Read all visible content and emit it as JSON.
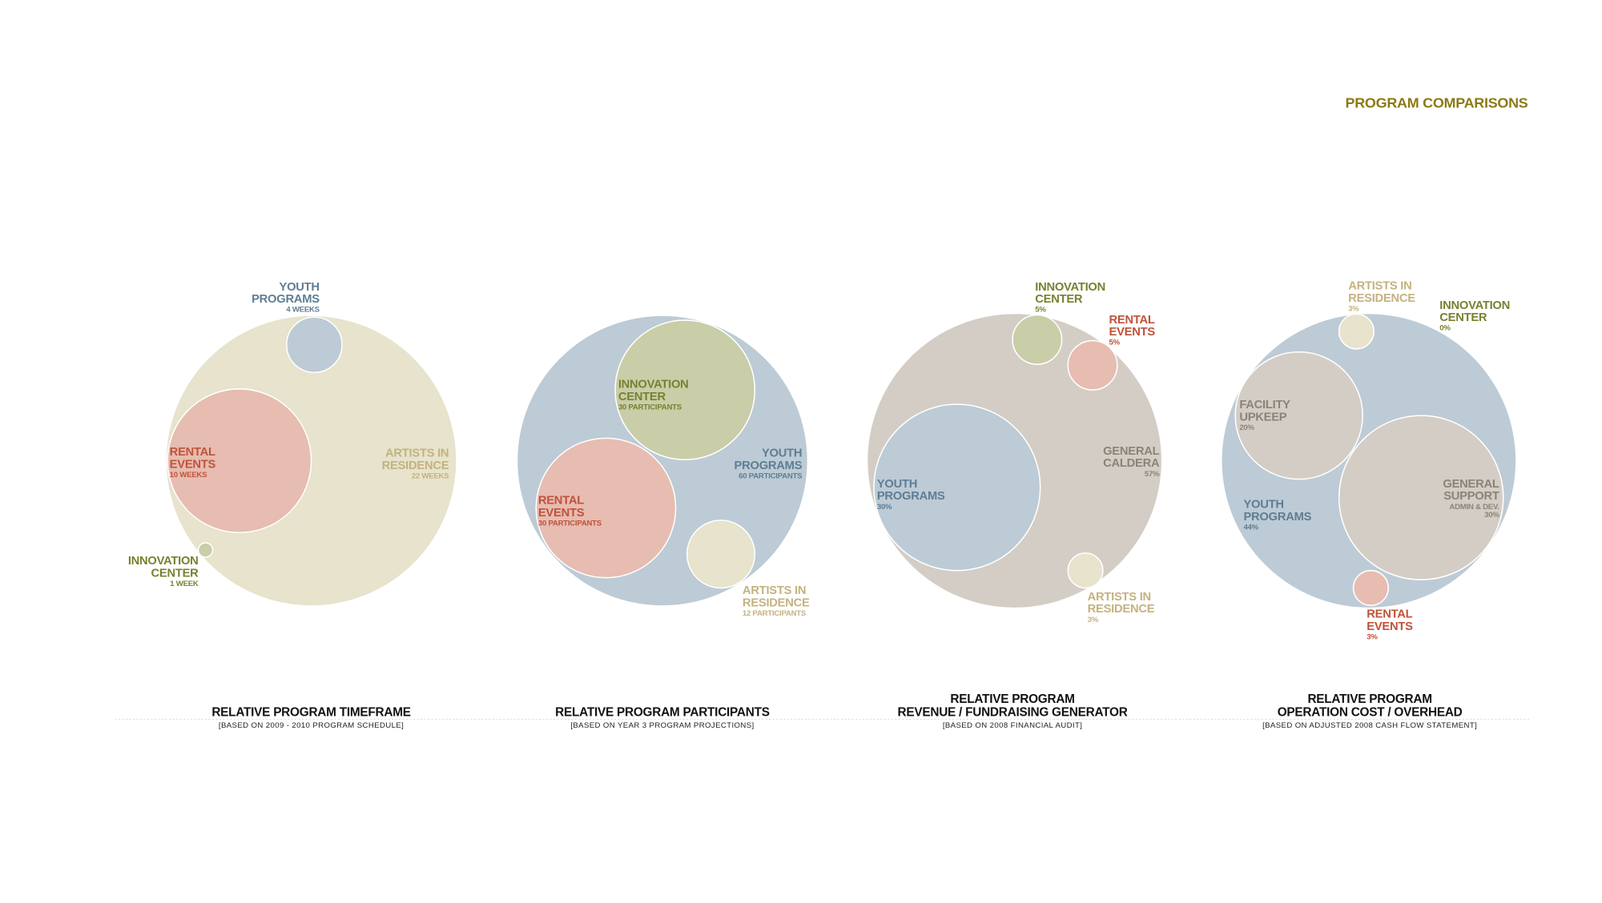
{
  "header": {
    "title": "PROGRAM COMPARISONS"
  },
  "panels": [
    {
      "labels": [
        {
          "name": [
            "YOUTH",
            "PROGRAMS"
          ],
          "detail": [
            "4 WEEKS"
          ]
        },
        {
          "name": [
            "RENTAL",
            "EVENTS"
          ],
          "detail": [
            "10 WEEKS"
          ]
        },
        {
          "name": [
            "ARTISTS IN",
            "RESIDENCE"
          ],
          "detail": [
            "22 WEEKS"
          ]
        },
        {
          "name": [
            "INNOVATION",
            "CENTER"
          ],
          "detail": [
            "1 WEEK"
          ]
        }
      ],
      "caption": {
        "lines": [
          "RELATIVE PROGRAM TIMEFRAME"
        ],
        "source": "[BASED ON 2009 - 2010 PROGRAM SCHEDULE]"
      }
    },
    {
      "labels": [
        {
          "name": [
            "INNOVATION",
            "CENTER"
          ],
          "detail": [
            "30 PARTICIPANTS"
          ]
        },
        {
          "name": [
            "YOUTH",
            "PROGRAMS"
          ],
          "detail": [
            "60 PARTICIPANTS"
          ]
        },
        {
          "name": [
            "RENTAL",
            "EVENTS"
          ],
          "detail": [
            "30 PARTICIPANTS"
          ]
        },
        {
          "name": [
            "ARTISTS IN",
            "RESIDENCE"
          ],
          "detail": [
            "12 PARTICIPANTS"
          ]
        }
      ],
      "caption": {
        "lines": [
          "RELATIVE PROGRAM PARTICIPANTS"
        ],
        "source": "[BASED ON YEAR 3 PROGRAM PROJECTIONS]"
      }
    },
    {
      "labels": [
        {
          "name": [
            "INNOVATION",
            "CENTER"
          ],
          "detail": [
            "5%"
          ]
        },
        {
          "name": [
            "RENTAL",
            "EVENTS"
          ],
          "detail": [
            "5%"
          ]
        },
        {
          "name": [
            "GENERAL",
            "CALDERA"
          ],
          "detail": [
            "57%"
          ]
        },
        {
          "name": [
            "YOUTH",
            "PROGRAMS"
          ],
          "detail": [
            "30%"
          ]
        },
        {
          "name": [
            "ARTISTS IN",
            "RESIDENCE"
          ],
          "detail": [
            "3%"
          ]
        }
      ],
      "caption": {
        "lines": [
          "RELATIVE PROGRAM",
          "REVENUE / FUNDRAISING GENERATOR"
        ],
        "source": "[BASED ON 2008 FINANCIAL AUDIT]"
      }
    },
    {
      "labels": [
        {
          "name": [
            "ARTISTS IN",
            "RESIDENCE"
          ],
          "detail": [
            "3%"
          ]
        },
        {
          "name": [
            "INNOVATION",
            "CENTER"
          ],
          "detail": [
            "0%"
          ]
        },
        {
          "name": [
            "FACILITY",
            "UPKEEP"
          ],
          "detail": [
            "20%"
          ]
        },
        {
          "name": [
            "YOUTH",
            "PROGRAMS"
          ],
          "detail": [
            "44%"
          ]
        },
        {
          "name": [
            "GENERAL",
            "SUPPORT"
          ],
          "detail": [
            "ADMIN & DEV.",
            "30%"
          ]
        },
        {
          "name": [
            "RENTAL",
            "EVENTS"
          ],
          "detail": [
            "3%"
          ]
        }
      ],
      "caption": {
        "lines": [
          "RELATIVE PROGRAM",
          "OPERATION COST / OVERHEAD"
        ],
        "source": "[BASED ON ADJUSTED 2008 CASH FLOW  STATEMENT]"
      }
    }
  ]
}
